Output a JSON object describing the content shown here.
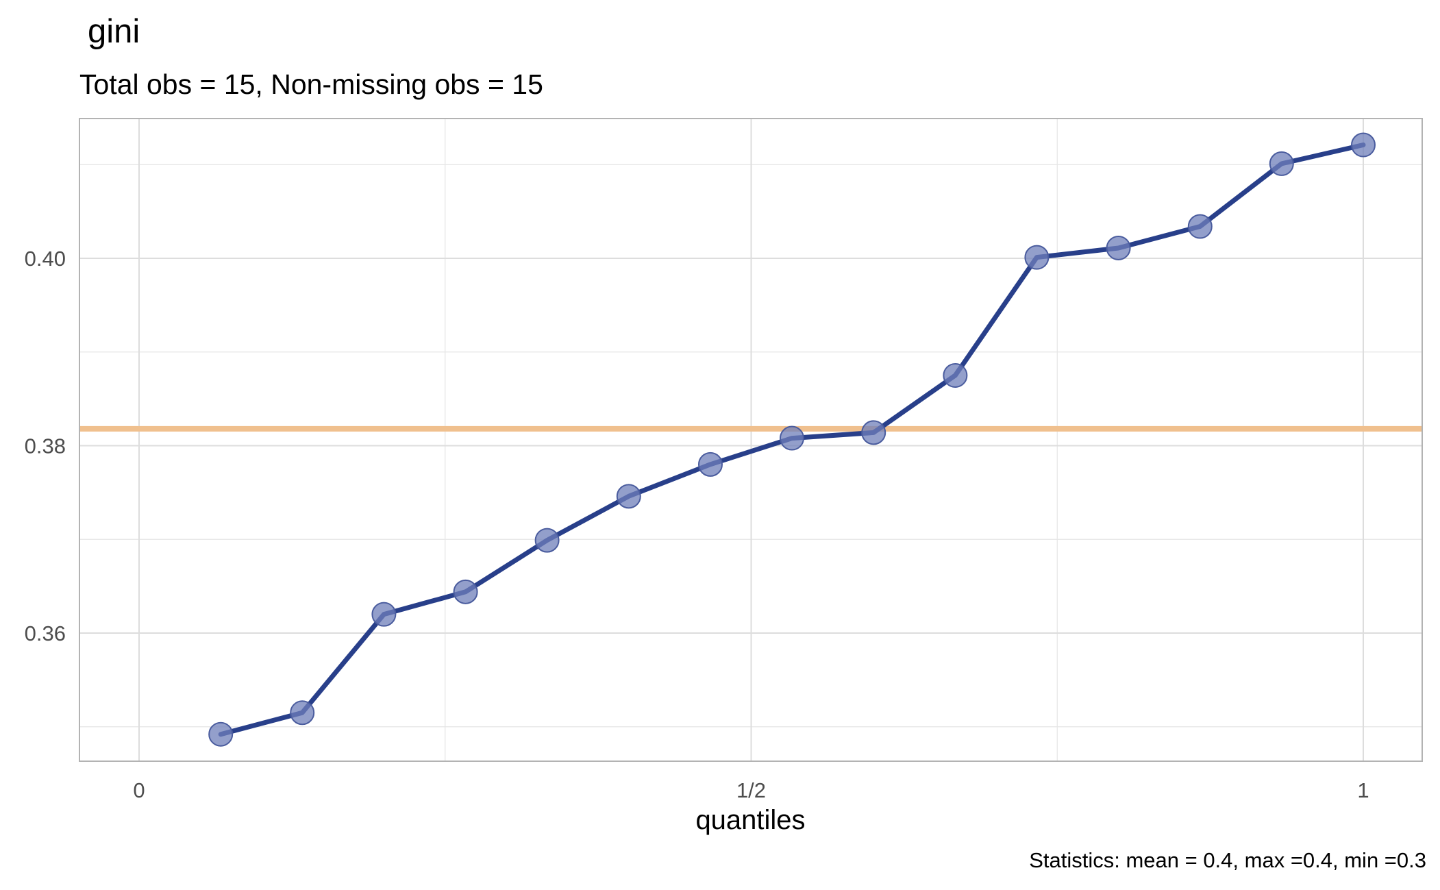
{
  "chart_data": {
    "type": "line",
    "title": "gini",
    "subtitle": "Total obs = 15,  Non-missing obs = 15",
    "xlabel": "quantiles",
    "ylabel": "",
    "caption": "Statistics: mean = 0.4, max =0.4, min =0.3",
    "x_ticks": [
      {
        "value": 0,
        "label": "0"
      },
      {
        "value": 0.5,
        "label": "1/2"
      },
      {
        "value": 1,
        "label": "1"
      }
    ],
    "y_ticks": [
      {
        "value": 0.36,
        "label": "0.36"
      },
      {
        "value": 0.38,
        "label": "0.38"
      },
      {
        "value": 0.4,
        "label": "0.40"
      }
    ],
    "xlim": [
      -0.049,
      1.049
    ],
    "ylim": [
      0.3463,
      0.4153
    ],
    "grid": true,
    "series": [
      {
        "x": [
          0.0667,
          0.1333,
          0.2,
          0.2667,
          0.3333,
          0.4,
          0.4667,
          0.5333,
          0.6,
          0.6667,
          0.7333,
          0.8,
          0.8667,
          0.9333,
          1.0
        ],
        "y": [
          0.3492,
          0.3515,
          0.362,
          0.3644,
          0.3699,
          0.3746,
          0.378,
          0.3808,
          0.3814,
          0.3875,
          0.4001,
          0.4011,
          0.4034,
          0.4101,
          0.4121
        ]
      }
    ],
    "reference_line": {
      "y": 0.3818,
      "color": "#F0C08E"
    },
    "colors": {
      "line": "#283F8A",
      "point": "#6F7FB9",
      "grid": "#E5E5E5",
      "panel_border": "#B3B3B3",
      "axis_text": "#4D4D4D"
    }
  }
}
